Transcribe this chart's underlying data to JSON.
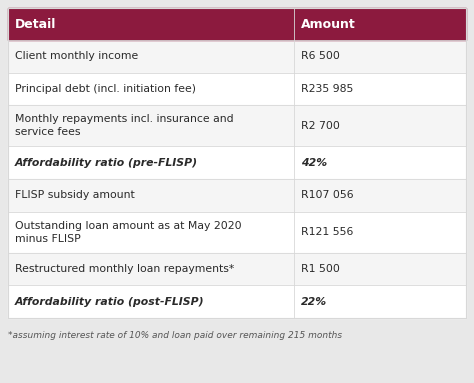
{
  "header": [
    "Detail",
    "Amount"
  ],
  "rows": [
    {
      "detail": "Client monthly income",
      "amount": "R6 500",
      "bold": false,
      "italic": false,
      "bg": "#f5f5f5"
    },
    {
      "detail": "Principal debt (incl. initiation fee)",
      "amount": "R235 985",
      "bold": false,
      "italic": false,
      "bg": "#ffffff"
    },
    {
      "detail": "Monthly repayments incl. insurance and\nservice fees",
      "amount": "R2 700",
      "bold": false,
      "italic": false,
      "bg": "#f5f5f5"
    },
    {
      "detail": "Affordability ratio (pre-FLISP)",
      "amount": "42%",
      "bold": true,
      "italic": true,
      "bg": "#ffffff"
    },
    {
      "detail": "FLISP subsidy amount",
      "amount": "R107 056",
      "bold": false,
      "italic": false,
      "bg": "#f5f5f5"
    },
    {
      "detail": "Outstanding loan amount as at May 2020\nminus FLISP",
      "amount": "R121 556",
      "bold": false,
      "italic": false,
      "bg": "#ffffff"
    },
    {
      "detail": "Restructured monthly loan repayments*",
      "amount": "R1 500",
      "bold": false,
      "italic": false,
      "bg": "#f5f5f5"
    },
    {
      "detail": "Affordability ratio (post-FLISP)",
      "amount": "22%",
      "bold": true,
      "italic": true,
      "bg": "#ffffff"
    }
  ],
  "footnote": "*assuming interest rate of 10% and loan paid over remaining 215 months",
  "header_bg": "#8C1A3E",
  "header_text_color": "#ffffff",
  "body_text_color": "#2a2a2a",
  "divider_color": "#d8d8d8",
  "outer_bg": "#e8e8e8",
  "col_split": 0.625,
  "fig_w": 4.74,
  "fig_h": 3.83,
  "dpi": 100
}
